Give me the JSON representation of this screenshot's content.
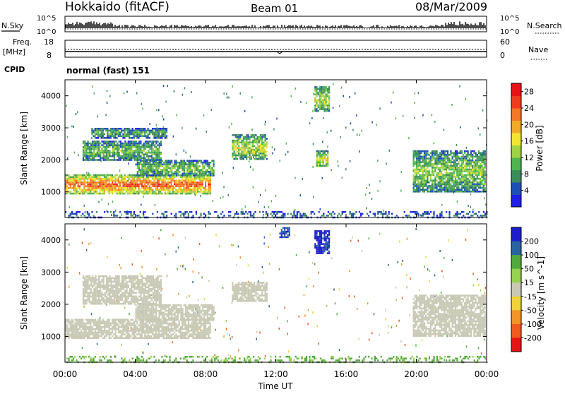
{
  "header": {
    "station": "Hokkaido (fitACF)",
    "beam": "Beam 01",
    "date": "08/Mar/2009"
  },
  "summary": {
    "nsky_label": "N.Sky",
    "nsearch_label": "N.Search",
    "noise_ticks": [
      "10^5",
      "10^0"
    ],
    "freq_label": "Freq.",
    "freq_unit": "[MHz]",
    "freq_ticks": [
      "18",
      "8"
    ],
    "nave_label": "Nave",
    "nave_ticks": [
      "60",
      "0"
    ],
    "cpid_label": "CPID",
    "cpid_value": "normal (fast) 151"
  },
  "colors": {
    "power": [
      "#1e1ee6",
      "#1e50b4",
      "#3c8c5a",
      "#50b450",
      "#a0d246",
      "#f0e632",
      "#f0aa28",
      "#f07828",
      "#f03c1e",
      "#e61414"
    ],
    "velocity_neg": [
      "#e61414",
      "#f05a1e",
      "#f09628",
      "#f0d23c"
    ],
    "velocity_mid": "#c8c8b4",
    "velocity_pos": [
      "#96d250",
      "#50aa3c",
      "#2864a0",
      "#1e1ec8"
    ]
  },
  "chart_data": [
    {
      "type": "heatmap",
      "name": "power-panel",
      "ylabel": "Slant Range [km]",
      "xlabel": "",
      "ylim": [
        200,
        4500
      ],
      "xlim": [
        0,
        24
      ],
      "yticks": [
        "1000",
        "2000",
        "3000",
        "4000"
      ],
      "xticks": [
        "00:00",
        "04:00",
        "08:00",
        "12:00",
        "16:00",
        "20:00",
        "00:00"
      ],
      "colorbar": {
        "label": "Power [dB]",
        "ticks": [
          "4",
          "8",
          "12",
          "16",
          "20",
          "24",
          "28"
        ],
        "range": [
          0,
          30
        ]
      },
      "regions": [
        {
          "t0": 0.0,
          "t1": 8.3,
          "r0": 950,
          "r1": 1550,
          "level": 25
        },
        {
          "t0": 4.0,
          "t1": 8.5,
          "r0": 1500,
          "r1": 2000,
          "level": 12
        },
        {
          "t0": 1.0,
          "t1": 5.5,
          "r0": 2000,
          "r1": 2600,
          "level": 12
        },
        {
          "t0": 1.5,
          "t1": 5.8,
          "r0": 2700,
          "r1": 3000,
          "level": 10
        },
        {
          "t0": 9.5,
          "t1": 11.5,
          "r0": 2000,
          "r1": 2800,
          "level": 15
        },
        {
          "t0": 14.2,
          "t1": 15.0,
          "r0": 3500,
          "r1": 4300,
          "level": 15
        },
        {
          "t0": 14.3,
          "t1": 15.0,
          "r0": 1800,
          "r1": 2300,
          "level": 18
        },
        {
          "t0": 19.8,
          "t1": 23.9,
          "r0": 1000,
          "r1": 2300,
          "level": 13
        },
        {
          "t0": 0.0,
          "t1": 24.0,
          "r0": 200,
          "r1": 400,
          "level": 6
        }
      ]
    },
    {
      "type": "heatmap",
      "name": "velocity-panel",
      "ylabel": "Slant Range [km]",
      "xlabel": "Time UT",
      "ylim": [
        200,
        4500
      ],
      "xlim": [
        0,
        24
      ],
      "yticks": [
        "1000",
        "2000",
        "3000",
        "4000"
      ],
      "xticks": [
        "00:00",
        "04:00",
        "08:00",
        "12:00",
        "16:00",
        "20:00",
        "00:00"
      ],
      "colorbar": {
        "label": "Velocity [m s^-1]",
        "ticks": [
          "200",
          "100",
          "50",
          "15",
          "-15",
          "-50",
          "-100",
          "-200"
        ],
        "range": [
          -250,
          250
        ]
      },
      "regions": [
        {
          "t0": 0.0,
          "t1": 8.3,
          "r0": 950,
          "r1": 1550,
          "level": 0
        },
        {
          "t0": 4.0,
          "t1": 8.5,
          "r0": 1500,
          "r1": 2000,
          "level": 0
        },
        {
          "t0": 1.0,
          "t1": 5.5,
          "r0": 2000,
          "r1": 2900,
          "level": 0
        },
        {
          "t0": 9.5,
          "t1": 11.5,
          "r0": 2100,
          "r1": 2700,
          "level": 0
        },
        {
          "t0": 14.2,
          "t1": 15.0,
          "r0": 3600,
          "r1": 4300,
          "level": 220
        },
        {
          "t0": 12.2,
          "t1": 12.8,
          "r0": 4100,
          "r1": 4400,
          "level": 200
        },
        {
          "t0": 19.8,
          "t1": 23.9,
          "r0": 1000,
          "r1": 2300,
          "level": 0
        },
        {
          "t0": 0.0,
          "t1": 24.0,
          "r0": 200,
          "r1": 400,
          "level": 60
        }
      ]
    }
  ]
}
